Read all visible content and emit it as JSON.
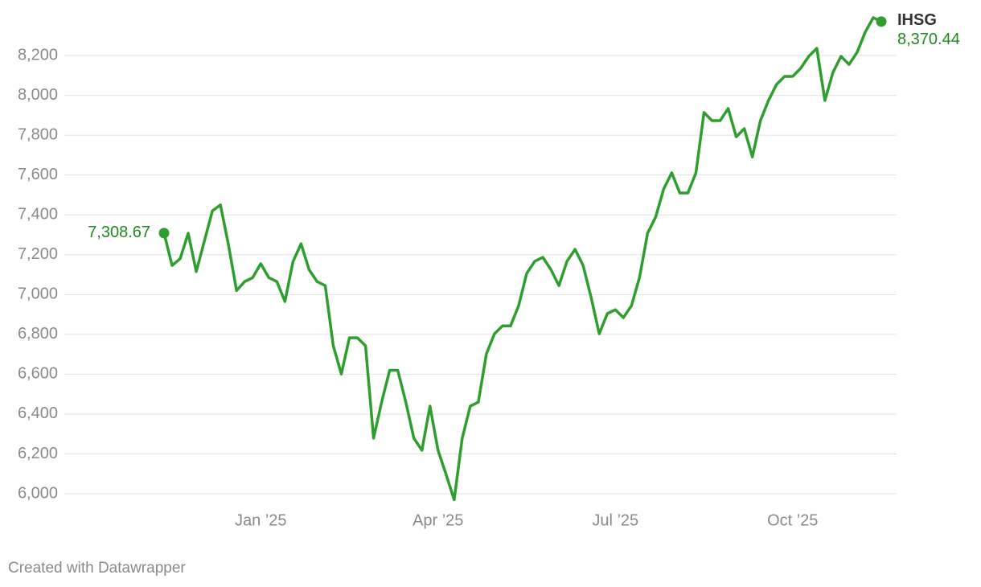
{
  "chart_data": {
    "type": "line",
    "categories": [
      null,
      null,
      null,
      null,
      null,
      null,
      null,
      null,
      null,
      null,
      null,
      null,
      "Jan ’25",
      null,
      null,
      null,
      null,
      null,
      null,
      null,
      null,
      null,
      null,
      null,
      null,
      null,
      null,
      null,
      null,
      null,
      null,
      null,
      null,
      null,
      "Apr ’25",
      null,
      null,
      null,
      null,
      null,
      null,
      null,
      null,
      null,
      null,
      null,
      null,
      null,
      null,
      null,
      null,
      null,
      null,
      null,
      null,
      null,
      "Jul ’25",
      null,
      null,
      null,
      null,
      null,
      null,
      null,
      null,
      null,
      null,
      null,
      null,
      null,
      null,
      null,
      null,
      null,
      null,
      null,
      null,
      null,
      "Oct ’25",
      null,
      null,
      null,
      null,
      null,
      null,
      null,
      null,
      null,
      null,
      null
    ],
    "series": [
      {
        "name": "IHSG",
        "color": "#2e9e2e",
        "values": [
          7308.67,
          7146,
          7180,
          7308,
          7115,
          7268,
          7420,
          7450,
          7248,
          7020,
          7065,
          7085,
          7155,
          7085,
          7065,
          6965,
          7165,
          7255,
          7125,
          7065,
          7045,
          6743,
          6601,
          6783,
          6783,
          6743,
          6279,
          6460,
          6620,
          6620,
          6460,
          6279,
          6218,
          6440,
          6218,
          6097,
          5970,
          6279,
          6440,
          6460,
          6702,
          6803,
          6843,
          6843,
          6944,
          7106,
          7167,
          7187,
          7126,
          7045,
          7167,
          7227,
          7146,
          6985,
          6803,
          6904,
          6924,
          6884,
          6944,
          7086,
          7308,
          7389,
          7530,
          7611,
          7510,
          7510,
          7611,
          7914,
          7873,
          7873,
          7934,
          7792,
          7833,
          7691,
          7873,
          7974,
          8055,
          8095,
          8095,
          8136,
          8196,
          8236,
          7974,
          8115,
          8196,
          8155,
          8216,
          8317,
          8390,
          8370.44
        ],
        "value_labels": [
          "7,308.67",
          null,
          null,
          null,
          null,
          null,
          null,
          null,
          null,
          null,
          null,
          null,
          null,
          null,
          null,
          null,
          null,
          null,
          null,
          null,
          null,
          null,
          null,
          null,
          null,
          null,
          null,
          null,
          null,
          null,
          null,
          null,
          null,
          null,
          null,
          null,
          null,
          null,
          null,
          null,
          null,
          null,
          null,
          null,
          null,
          null,
          null,
          null,
          null,
          null,
          null,
          null,
          null,
          null,
          null,
          null,
          null,
          null,
          null,
          null,
          null,
          null,
          null,
          null,
          null,
          null,
          null,
          null,
          null,
          null,
          null,
          null,
          null,
          null,
          null,
          null,
          null,
          null,
          null,
          null,
          null,
          null,
          null,
          null,
          null,
          null,
          null,
          null,
          null,
          "8,370.44"
        ]
      }
    ],
    "ylim": [
      5940,
      8400
    ],
    "yticks": [
      {
        "value": 6000,
        "label": "6,000"
      },
      {
        "value": 6200,
        "label": "6,200"
      },
      {
        "value": 6400,
        "label": "6,400"
      },
      {
        "value": 6600,
        "label": "6,600"
      },
      {
        "value": 6800,
        "label": "6,800"
      },
      {
        "value": 7000,
        "label": "7,000"
      },
      {
        "value": 7200,
        "label": "7,200"
      },
      {
        "value": 7400,
        "label": "7,400"
      },
      {
        "value": 7600,
        "label": "7,600"
      },
      {
        "value": 7800,
        "label": "7,800"
      },
      {
        "value": 8000,
        "label": "8,000"
      },
      {
        "value": 8200,
        "label": "8,200"
      }
    ],
    "grid": true,
    "footer": "Created with Datawrapper"
  }
}
